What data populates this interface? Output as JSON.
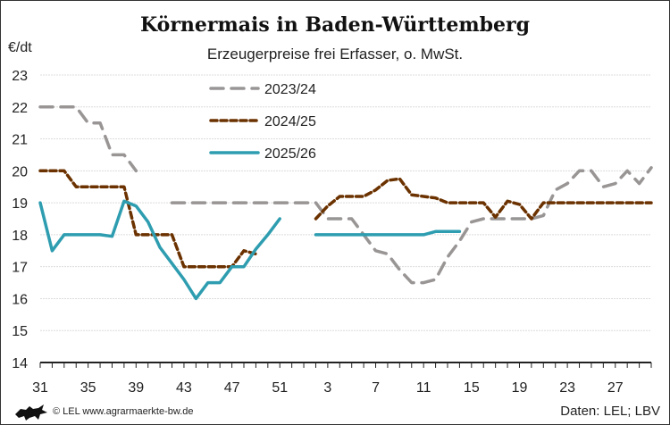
{
  "chart_data": {
    "type": "line",
    "title": "Körnermais in Baden-Württemberg",
    "subtitle": "Erzeugerpreise frei Erfasser, o. MwSt.",
    "ylabel": "€/dt",
    "ylim": [
      14,
      23
    ],
    "yticks": [
      14,
      15,
      16,
      17,
      18,
      19,
      20,
      21,
      22,
      23
    ],
    "x": [
      31,
      32,
      33,
      34,
      35,
      36,
      37,
      38,
      39,
      40,
      41,
      42,
      43,
      44,
      45,
      46,
      47,
      48,
      49,
      50,
      51,
      52,
      1,
      2,
      3,
      4,
      5,
      6,
      7,
      8,
      9,
      10,
      11,
      12,
      13,
      14,
      15,
      16,
      17,
      18,
      19,
      20,
      21,
      22,
      23,
      24,
      25,
      26,
      27,
      28,
      29,
      30
    ],
    "xtick_labels": [
      "31",
      "35",
      "39",
      "43",
      "47",
      "51",
      "3",
      "7",
      "11",
      "15",
      "19",
      "23",
      "27"
    ],
    "grid": "horizontal",
    "legend_placement": "top-center",
    "series": [
      {
        "name": "2023/24",
        "color": "#999595",
        "style": "long-dash",
        "values": [
          22,
          22,
          22,
          22,
          21.5,
          21.5,
          20.5,
          20.5,
          20,
          null,
          null,
          19,
          19,
          19,
          19,
          19,
          19,
          19,
          19,
          19,
          19,
          19,
          19,
          19,
          18.5,
          18.5,
          18.5,
          18,
          17.5,
          17.4,
          16.9,
          16.5,
          16.5,
          16.6,
          17.3,
          17.8,
          18.4,
          18.5,
          18.5,
          18.5,
          18.5,
          18.5,
          18.6,
          19.4,
          19.6,
          20,
          20,
          19.5,
          19.6,
          20,
          19.6,
          20.1
        ]
      },
      {
        "name": "2024/25",
        "color": "#6b3200",
        "style": "short-dash",
        "values": [
          20,
          20,
          20,
          19.5,
          19.5,
          19.5,
          19.5,
          19.5,
          18,
          18,
          18,
          18,
          17,
          17,
          17,
          17,
          17,
          17.5,
          17.4,
          null,
          null,
          null,
          null,
          18.5,
          18.9,
          19.2,
          19.2,
          19.2,
          19.4,
          19.7,
          19.75,
          19.25,
          19.2,
          19.15,
          19,
          19,
          19,
          19,
          18.55,
          19.05,
          18.95,
          18.5,
          19,
          19,
          19,
          19,
          19,
          19,
          19,
          19,
          19,
          19
        ]
      },
      {
        "name": "2025/26",
        "color": "#2e9db0",
        "style": "solid",
        "values": [
          19,
          17.5,
          18,
          18,
          18,
          18,
          17.95,
          19.05,
          18.9,
          18.4,
          17.6,
          17.1,
          16.6,
          16,
          16.5,
          16.5,
          17,
          17,
          17.55,
          18,
          18.5,
          null,
          null,
          18,
          18,
          18,
          18,
          18,
          18,
          18,
          18,
          18,
          18,
          18.1,
          18.1,
          18.1,
          null,
          null,
          null,
          null,
          null,
          null,
          null,
          null,
          null,
          null,
          null,
          null,
          null,
          null,
          null,
          null
        ]
      }
    ]
  },
  "footer": {
    "copyright": "© LEL www.agrarmaerkte-bw.de",
    "source": "Daten: LEL; LBV",
    "logo_icon": "lion-coat-of-arms"
  }
}
